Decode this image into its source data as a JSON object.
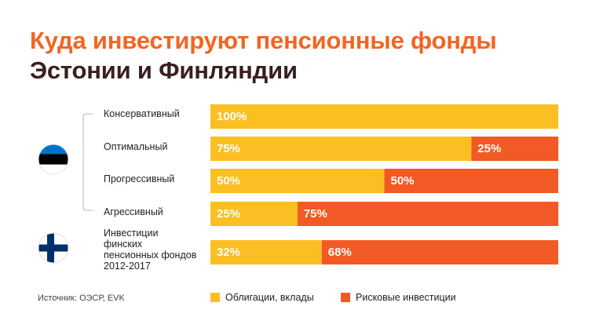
{
  "title": {
    "line1": "Куда инвестируют пенсионные фонды",
    "line2": "Эстонии и Финляндии"
  },
  "source": "Источник: ОЭСР, EVK",
  "colors": {
    "bonds": "#fbbf24",
    "risky": "#f15a24",
    "title_accent": "#f26522",
    "title_dark": "#3b1f1f",
    "bracket": "#b5b5b5"
  },
  "flags": {
    "estonia": "estonia-flag-icon",
    "finland": "finland-flag-icon"
  },
  "legend": {
    "bonds": "Облигации, вклады",
    "risky": "Рисковые инвестиции"
  },
  "chart_data": {
    "type": "bar",
    "orientation": "horizontal",
    "stacked": true,
    "xlim": [
      0,
      100
    ],
    "categories": [
      "Консервативный",
      "Оптимальный",
      "Прогрессивный",
      "Агрессивный",
      "Инвестиции финских пенсионных фондов 2012-2017"
    ],
    "series": [
      {
        "name": "Облигации, вклады",
        "values": [
          100,
          75,
          50,
          25,
          32
        ],
        "labels": [
          "100%",
          "75%",
          "50%",
          "25%",
          "32%"
        ]
      },
      {
        "name": "Рисковые инвестиции",
        "values": [
          0,
          25,
          50,
          75,
          68
        ],
        "labels": [
          "",
          "25%",
          "50%",
          "75%",
          "68%"
        ]
      }
    ]
  }
}
